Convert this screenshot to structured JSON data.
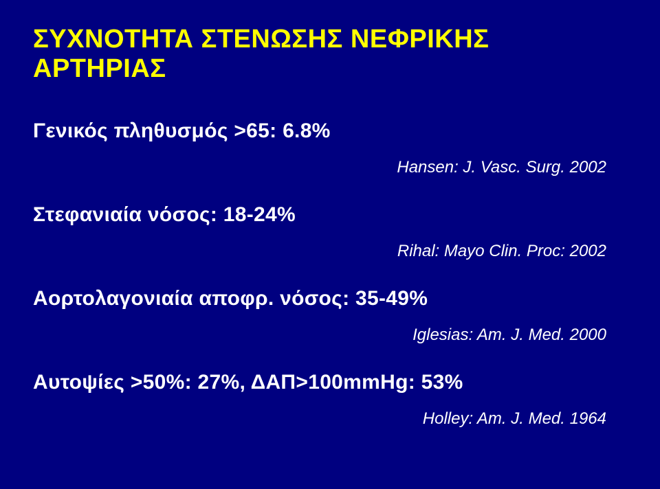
{
  "slide": {
    "background_color": "#000080",
    "title_color": "#ffff00",
    "text_color": "#ffffff",
    "title_fontsize": 38,
    "line_fontsize": 30,
    "cite_fontsize": 24,
    "title": "ΣΥΧΝΟΤΗΤΑ ΣΤΕΝΩΣΗΣ ΝΕΦΡΙΚΗΣ ΑΡΤΗΡΙΑΣ",
    "lines": {
      "l1": "Γενικός πληθυσμός >65: 6.8%",
      "c1": "Hansen: J. Vasc. Surg. 2002",
      "l2": "Στεφανιαία νόσος: 18-24%",
      "c2": "Rihal: Mayo Clin. Proc: 2002",
      "l3": "Αορτολαγονιαία αποφρ. νόσος: 35-49%",
      "c3": "Iglesias: Am. J. Med. 2000",
      "l4": "Αυτοψίες >50%: 27%, ΔΑΠ>100mmHg: 53%",
      "c4": "Holley: Am. J. Med. 1964"
    }
  }
}
